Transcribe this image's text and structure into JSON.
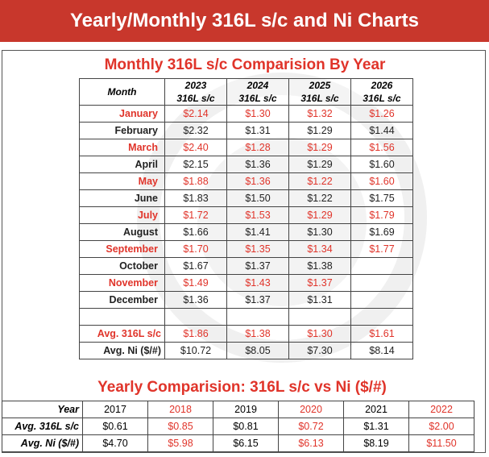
{
  "banner": {
    "title": "Yearly/Monthly 316L s/c and Ni Charts"
  },
  "monthly": {
    "title": "Monthly 316L s/c Comparision By Year",
    "month_header": "Month",
    "columns": [
      {
        "year": "2023",
        "sub": "316L s/c"
      },
      {
        "year": "2024",
        "sub": "316L s/c"
      },
      {
        "year": "2025",
        "sub": "316L s/c"
      },
      {
        "year": "2026",
        "sub": "316L s/c"
      }
    ],
    "rows": [
      {
        "month": "January",
        "values": [
          "$2.14",
          "$1.30",
          "$1.32",
          "$1.26"
        ]
      },
      {
        "month": "February",
        "values": [
          "$2.32",
          "$1.31",
          "$1.29",
          "$1.44"
        ]
      },
      {
        "month": "March",
        "values": [
          "$2.40",
          "$1.28",
          "$1.29",
          "$1.56"
        ]
      },
      {
        "month": "April",
        "values": [
          "$2.15",
          "$1.36",
          "$1.29",
          "$1.60"
        ]
      },
      {
        "month": "May",
        "values": [
          "$1.88",
          "$1.36",
          "$1.22",
          "$1.60"
        ]
      },
      {
        "month": "June",
        "values": [
          "$1.83",
          "$1.50",
          "$1.22",
          "$1.75"
        ]
      },
      {
        "month": "July",
        "values": [
          "$1.72",
          "$1.53",
          "$1.29",
          "$1.79"
        ]
      },
      {
        "month": "August",
        "values": [
          "$1.66",
          "$1.41",
          "$1.30",
          "$1.69"
        ]
      },
      {
        "month": "September",
        "values": [
          "$1.70",
          "$1.35",
          "$1.34",
          "$1.77"
        ]
      },
      {
        "month": "October",
        "values": [
          "$1.67",
          "$1.37",
          "$1.38",
          ""
        ]
      },
      {
        "month": "November",
        "values": [
          "$1.49",
          "$1.43",
          "$1.37",
          ""
        ]
      },
      {
        "month": "December",
        "values": [
          "$1.36",
          "$1.37",
          "$1.31",
          ""
        ]
      }
    ],
    "avg_316": {
      "label": "Avg. 316L s/c",
      "values": [
        "$1.86",
        "$1.38",
        "$1.30",
        "$1.61"
      ]
    },
    "avg_ni": {
      "label": "Avg. Ni ($/#)",
      "values": [
        "$10.72",
        "$8.05",
        "$7.30",
        "$8.14"
      ]
    }
  },
  "yearly": {
    "title": "Yearly Comparision: 316L s/c vs Ni ($/#)",
    "year_label": "Year",
    "years": [
      "2017",
      "2018",
      "2019",
      "2020",
      "2021",
      "2022"
    ],
    "avg_316_label": "Avg. 316L s/c",
    "avg_316": [
      "$0.61",
      "$0.85",
      "$0.81",
      "$0.72",
      "$1.31",
      "$2.00"
    ],
    "avg_ni_label": "Avg. Ni ($/#)",
    "avg_ni": [
      "$4.70",
      "$5.98",
      "$6.15",
      "$6.13",
      "$8.19",
      "$11.50"
    ]
  },
  "colors": {
    "banner": "#c8372c",
    "accent_red": "#e0342a"
  }
}
